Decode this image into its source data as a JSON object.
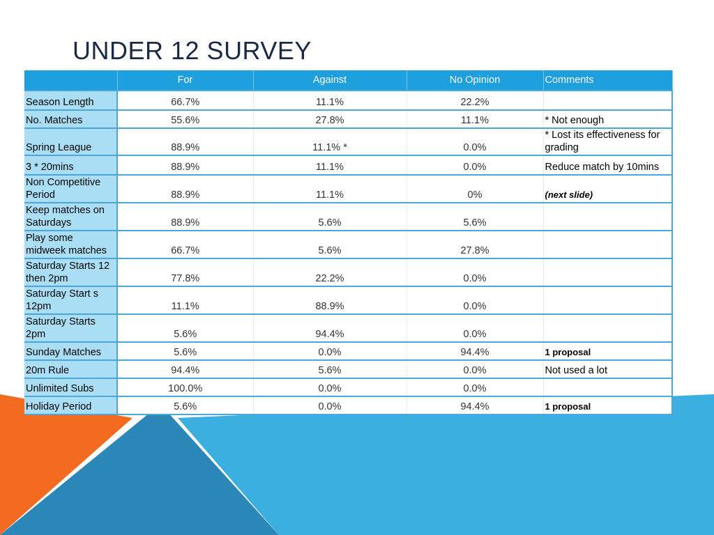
{
  "title": "UNDER 12 SURVEY",
  "table": {
    "headers": [
      "",
      "For",
      "Against",
      "No Opinion",
      "Comments"
    ],
    "rows": [
      {
        "label": "Season Length",
        "for": "66.7%",
        "against": "11.1%",
        "no_opinion": "22.2%",
        "comment": "",
        "comment_style": "normal"
      },
      {
        "label": "No. Matches",
        "for": "55.6%",
        "against": "27.8%",
        "no_opinion": "11.1%",
        "comment": "* Not enough",
        "comment_style": "normal"
      },
      {
        "label": "Spring League",
        "for": "88.9%",
        "against": "11.1% *",
        "no_opinion": "0.0%",
        "comment": "* Lost its effectiveness for grading",
        "comment_style": "normal"
      },
      {
        "label": "3 * 20mins",
        "for": "88.9%",
        "against": "11.1%",
        "no_opinion": "0.0%",
        "comment": "Reduce match by 10mins",
        "comment_style": "normal"
      },
      {
        "label": "Non Competitive Period",
        "for": "88.9%",
        "against": "11.1%",
        "no_opinion": "0%",
        "comment": "(next slide)",
        "comment_style": "italic-bold"
      },
      {
        "label": "Keep matches on Saturdays",
        "for": "88.9%",
        "against": "5.6%",
        "no_opinion": "5.6%",
        "comment": "",
        "comment_style": "normal"
      },
      {
        "label": "Play some midweek matches",
        "for": "66.7%",
        "against": "5.6%",
        "no_opinion": "27.8%",
        "comment": "",
        "comment_style": "normal"
      },
      {
        "label": "Saturday Starts 12 then 2pm",
        "for": "77.8%",
        "against": "22.2%",
        "no_opinion": "0.0%",
        "comment": "",
        "comment_style": "normal"
      },
      {
        "label": "Saturday Start s 12pm",
        "for": "11.1%",
        "against": "88.9%",
        "no_opinion": "0.0%",
        "comment": "",
        "comment_style": "normal"
      },
      {
        "label": "Saturday Starts 2pm",
        "for": "5.6%",
        "against": "94.4%",
        "no_opinion": "0.0%",
        "comment": "",
        "comment_style": "normal"
      },
      {
        "label": "Sunday Matches",
        "for": "5.6%",
        "against": "0.0%",
        "no_opinion": "94.4%",
        "comment": "1 proposal",
        "comment_style": "bold"
      },
      {
        "label": "20m Rule",
        "for": "94.4%",
        "against": "5.6%",
        "no_opinion": "0.0%",
        "comment": "Not used a lot",
        "comment_style": "normal"
      },
      {
        "label": "Unlimited Subs",
        "for": "100.0%",
        "against": "0.0%",
        "no_opinion": "0.0%",
        "comment": "",
        "comment_style": "normal"
      },
      {
        "label": "Holiday Period",
        "for": "5.6%",
        "against": "0.0%",
        "no_opinion": "94.4%",
        "comment": "1 proposal",
        "comment_style": "bold"
      }
    ]
  },
  "colors": {
    "header_bg": "#1fa0de",
    "label_bg": "#a9def5",
    "border": "#4da5d8",
    "orange": "#f26b21",
    "blue_light": "#3bb0e0",
    "blue_dark": "#2a87b8"
  }
}
